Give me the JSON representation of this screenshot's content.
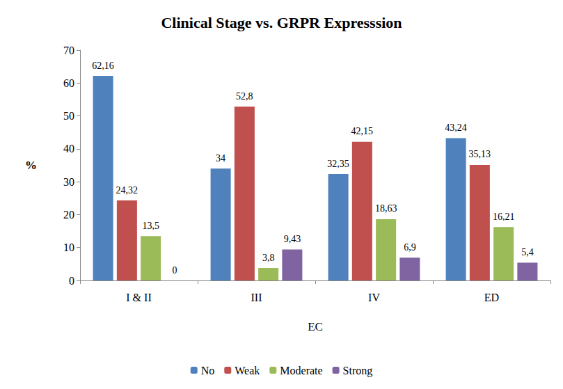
{
  "chart_data": {
    "type": "bar",
    "title": "Clinical Stage vs. GRPR Expresssion",
    "x_label": "EC",
    "y_label": "%",
    "categories": [
      "I & II",
      "III",
      "IV",
      "ED"
    ],
    "series": [
      {
        "name": "No",
        "color": "#4f81bd",
        "values": [
          62.16,
          34,
          32.35,
          43.24
        ],
        "value_labels": [
          "62,16",
          "34",
          "32,35",
          "43,24"
        ]
      },
      {
        "name": "Weak",
        "color": "#c0504d",
        "values": [
          24.32,
          52.8,
          42.15,
          35.13
        ],
        "value_labels": [
          "24,32",
          "52,8",
          "42,15",
          "35,13"
        ]
      },
      {
        "name": "Moderate",
        "color": "#9bbb59",
        "values": [
          13.5,
          3.8,
          18.63,
          16.21
        ],
        "value_labels": [
          "13,5",
          "3,8",
          "18,63",
          "16,21"
        ]
      },
      {
        "name": "Strong",
        "color": "#8064a2",
        "values": [
          0,
          9.43,
          6.9,
          5.4
        ],
        "value_labels": [
          "0",
          "9,43",
          "6,9",
          "5,4"
        ]
      }
    ],
    "ylim": [
      0,
      70
    ],
    "yticks": [
      0,
      10,
      20,
      30,
      40,
      50,
      60,
      70
    ],
    "grid": false,
    "legend": "bottom",
    "data_labels": true
  }
}
